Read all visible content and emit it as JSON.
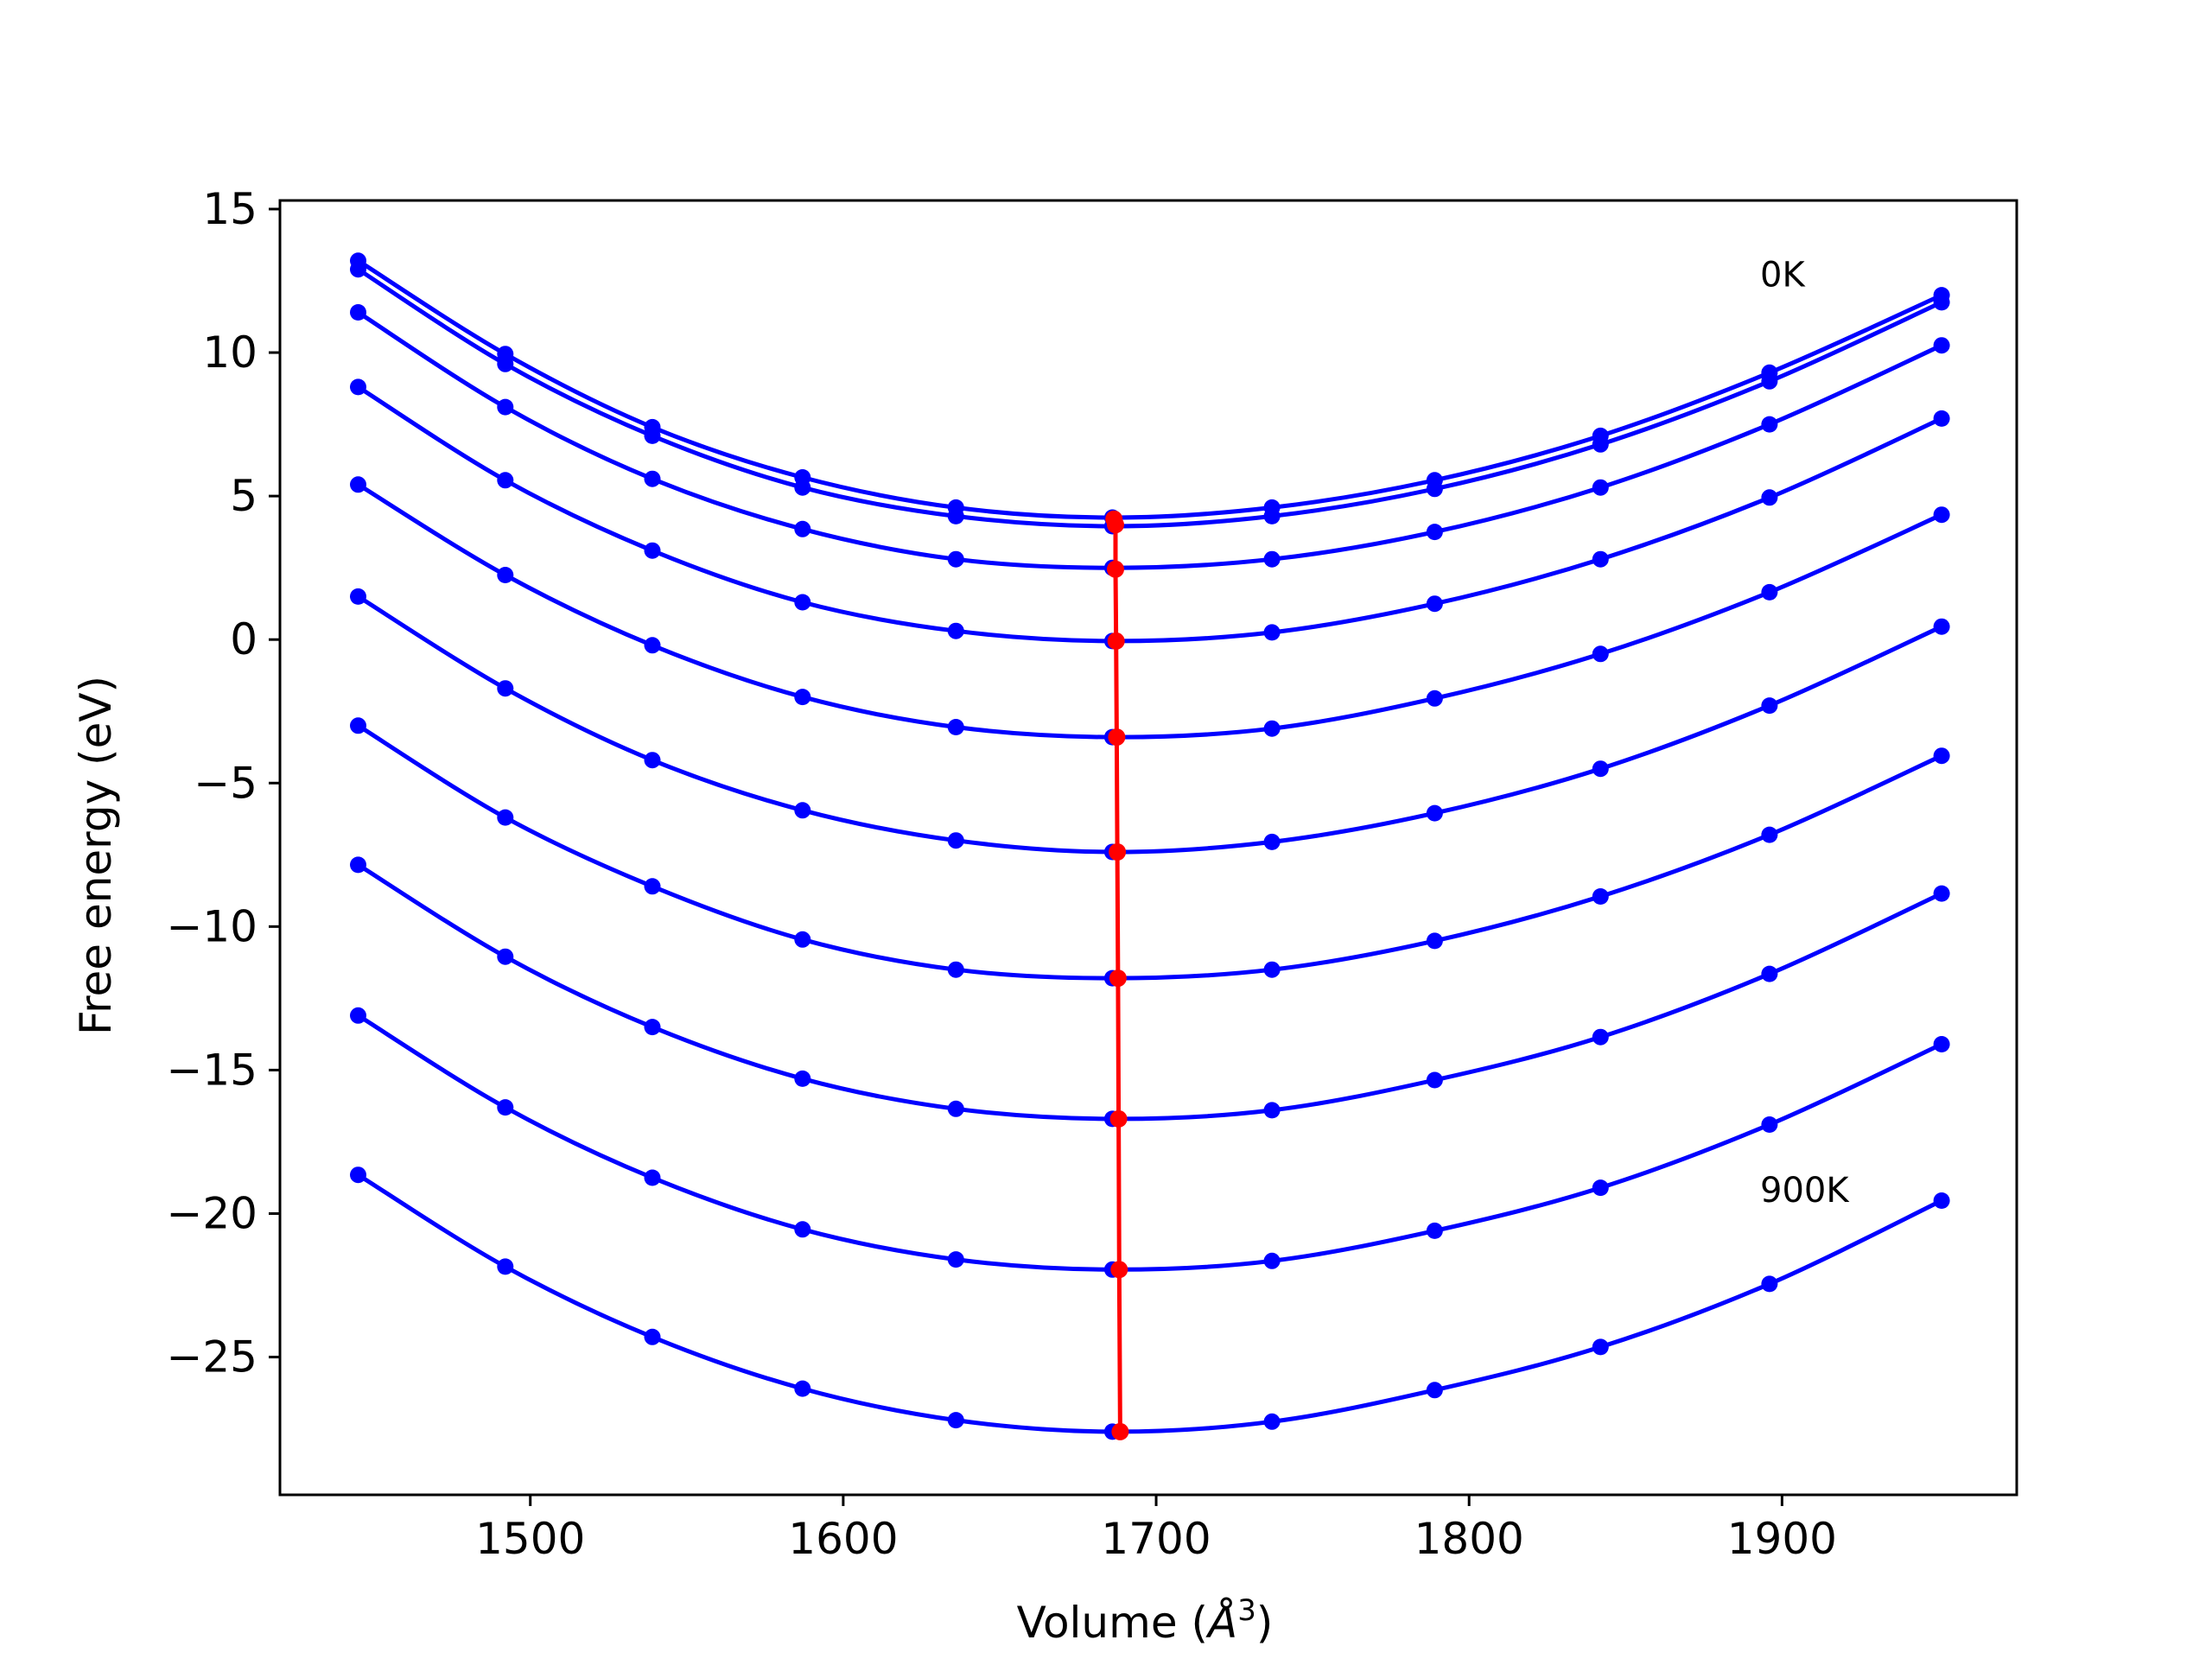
{
  "chart_data": {
    "type": "line",
    "title": "",
    "xlabel_main": "Volume (",
    "xlabel_unit": "Å",
    "xlabel_exp": "3",
    "xlabel_close": ")",
    "ylabel": "Free energy (eV)",
    "xlim": [
      1420,
      1975
    ],
    "ylim": [
      -29.8,
      15.3
    ],
    "x_ticks": [
      1500,
      1600,
      1700,
      1800,
      1900
    ],
    "y_ticks": [
      15,
      10,
      5,
      0,
      -5,
      -10,
      -15,
      -20,
      -25
    ],
    "x_tick_labels": [
      "1500",
      "1600",
      "1700",
      "1800",
      "1900"
    ],
    "y_tick_labels": [
      "15",
      "10",
      "5",
      "0",
      "−5",
      "−10",
      "−15",
      "−20",
      "−25"
    ],
    "grid": false,
    "colors": {
      "curves": "#0000ff",
      "minimum_line": "#ff0000",
      "axes": "#000000"
    },
    "x": [
      1445,
      1492,
      1539,
      1587,
      1636,
      1686,
      1737,
      1789,
      1842,
      1896,
      1951
    ],
    "series": [
      {
        "values": [
          13.2,
          9.95,
          7.4,
          5.65,
          4.6,
          4.25,
          4.6,
          5.55,
          7.1,
          9.3,
          12.0
        ]
      },
      {
        "values": [
          12.9,
          9.6,
          7.1,
          5.3,
          4.3,
          3.95,
          4.3,
          5.25,
          6.8,
          9.0,
          11.75
        ]
      },
      {
        "values": [
          11.4,
          8.1,
          5.6,
          3.85,
          2.8,
          2.5,
          2.8,
          3.75,
          5.3,
          7.5,
          10.25
        ]
      },
      {
        "values": [
          8.8,
          5.55,
          3.1,
          1.3,
          0.3,
          -0.05,
          0.25,
          1.25,
          2.8,
          4.95,
          7.7
        ]
      },
      {
        "values": [
          5.4,
          2.25,
          -0.2,
          -2.0,
          -3.05,
          -3.4,
          -3.1,
          -2.05,
          -0.5,
          1.65,
          4.35
        ]
      },
      {
        "values": [
          1.5,
          -1.7,
          -4.2,
          -5.95,
          -7.0,
          -7.4,
          -7.05,
          -6.05,
          -4.5,
          -2.3,
          0.45
        ]
      },
      {
        "values": [
          -3.0,
          -6.2,
          -8.6,
          -10.45,
          -11.5,
          -11.8,
          -11.5,
          -10.5,
          -8.95,
          -6.8,
          -4.05
        ]
      },
      {
        "values": [
          -7.85,
          -11.05,
          -13.5,
          -15.3,
          -16.35,
          -16.7,
          -16.4,
          -15.35,
          -13.85,
          -11.65,
          -8.85
        ]
      },
      {
        "values": [
          -13.1,
          -16.3,
          -18.75,
          -20.55,
          -21.6,
          -21.95,
          -21.65,
          -20.6,
          -19.1,
          -16.9,
          -14.1
        ]
      },
      {
        "values": [
          -18.65,
          -21.85,
          -24.3,
          -26.1,
          -27.2,
          -27.6,
          -27.25,
          -26.15,
          -24.65,
          -22.45,
          -19.55
        ]
      }
    ],
    "minimum_line": {
      "x": [
        1686.5,
        1687.0,
        1687.0,
        1687.2,
        1687.4,
        1687.6,
        1687.8,
        1688.0,
        1688.2,
        1688.5
      ],
      "y": [
        4.2,
        4.0,
        2.45,
        -0.05,
        -3.4,
        -7.4,
        -11.8,
        -16.7,
        -21.95,
        -27.6
      ]
    },
    "annotations": [
      {
        "text": "0K",
        "x": 1893,
        "y": 12.3
      },
      {
        "text": "900K",
        "x": 1893,
        "y": -19.6
      }
    ]
  }
}
